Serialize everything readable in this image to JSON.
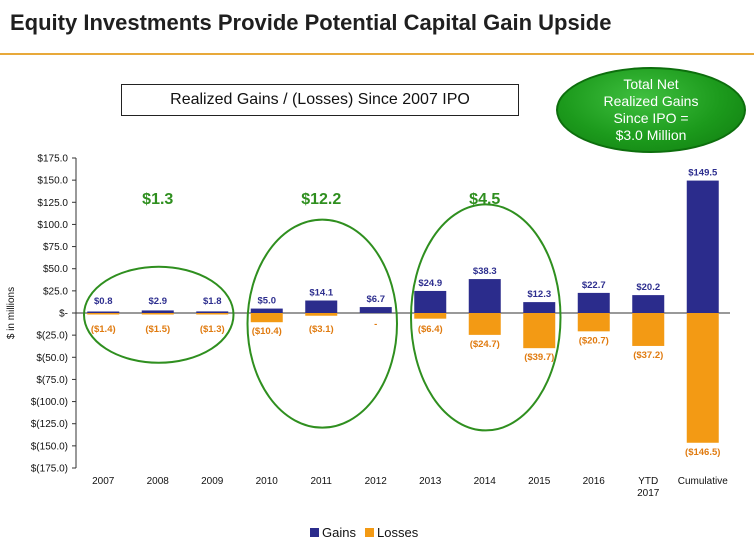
{
  "header": {
    "title": "Equity Investments Provide Potential Capital Gain Upside",
    "subtitle": "Realized Gains / (Losses) Since 2007 IPO",
    "callout": "Total Net\nRealized Gains\nSince IPO =\n$3.0 Million"
  },
  "colors": {
    "gains": "#2b2c8c",
    "losses": "#f39a14",
    "accent_rule": "#e8a93a",
    "group_oval": "#2f8f1f"
  },
  "chart_data": {
    "type": "bar",
    "title": "Realized Gains / (Losses) Since 2007 IPO",
    "ylabel": "$ in millions",
    "xlabel": "",
    "ylim": [
      -175,
      175
    ],
    "yticks": [
      175,
      150,
      125,
      100,
      75,
      50,
      25,
      0,
      -25,
      -50,
      -75,
      -100,
      -125,
      -150,
      -175
    ],
    "ytick_labels": [
      "$175.0",
      "$150.0",
      "$125.0",
      "$100.0",
      "$75.0",
      "$50.0",
      "$25.0",
      "$-",
      "$(25.0)",
      "$(50.0)",
      "$(75.0)",
      "$(100.0)",
      "$(125.0)",
      "$(150.0)",
      "$(175.0)"
    ],
    "categories": [
      "2007",
      "2008",
      "2009",
      "2010",
      "2011",
      "2012",
      "2013",
      "2014",
      "2015",
      "2016",
      "YTD\n2017",
      "Cumulative"
    ],
    "series": [
      {
        "name": "Gains",
        "values": [
          0.8,
          2.9,
          1.8,
          5.0,
          14.1,
          6.7,
          24.9,
          38.3,
          12.3,
          22.7,
          20.2,
          149.5
        ],
        "labels": [
          "$0.8",
          "$2.9",
          "$1.8",
          "$5.0",
          "$14.1",
          "$6.7",
          "$24.9",
          "$38.3",
          "$12.3",
          "$22.7",
          "$20.2",
          "$149.5"
        ]
      },
      {
        "name": "Losses",
        "values": [
          -1.4,
          -1.5,
          -1.3,
          -10.4,
          -3.1,
          0,
          -6.4,
          -24.7,
          -39.7,
          -20.7,
          -37.2,
          -146.5
        ],
        "labels": [
          "($1.4)",
          "($1.5)",
          "($1.3)",
          "($10.4)",
          "($3.1)",
          "-",
          "($6.4)",
          "($24.7)",
          "($39.7)",
          "($20.7)",
          "($37.2)",
          "($146.5)"
        ]
      }
    ],
    "legend": {
      "position": "bottom"
    },
    "grid": false,
    "annotations": [
      {
        "label": "$1.3",
        "from": 0,
        "to": 2
      },
      {
        "label": "$12.2",
        "from": 3,
        "to": 5
      },
      {
        "label": "$4.5",
        "from": 6,
        "to": 8
      }
    ]
  }
}
